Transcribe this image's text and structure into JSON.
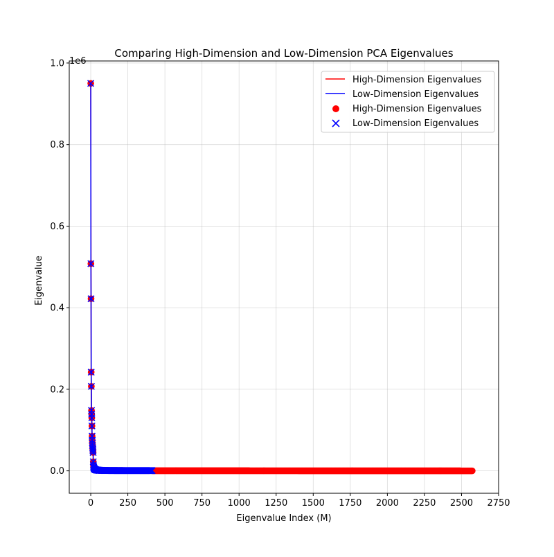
{
  "chart_data": {
    "type": "line",
    "title": "Comparing High-Dimension and Low-Dimension PCA Eigenvalues",
    "xlabel": "Eigenvalue Index (M)",
    "ylabel": "Eigenvalue",
    "y_offset_label": "1e6",
    "xlim": [
      -145,
      2750
    ],
    "ylim": [
      -0.055,
      1.005
    ],
    "y_scale": 1000000,
    "x_ticks": [
      0,
      250,
      500,
      750,
      1000,
      1250,
      1500,
      1750,
      2000,
      2250,
      2500,
      2750
    ],
    "x_tick_labels": [
      "0",
      "250",
      "500",
      "750",
      "1000",
      "1250",
      "1500",
      "1750",
      "2000",
      "2250",
      "2500",
      "2750"
    ],
    "y_ticks": [
      0.0,
      0.2,
      0.4,
      0.6,
      0.8,
      1.0
    ],
    "y_tick_labels": [
      "0.0",
      "0.2",
      "0.4",
      "0.6",
      "0.8",
      "1.0"
    ],
    "grid": true,
    "legend_position": "top-right",
    "legend": [
      {
        "label": "High-Dimension Eigenvalues",
        "marker": "line",
        "color": "#ff0000"
      },
      {
        "label": "Low-Dimension Eigenvalues",
        "marker": "line",
        "color": "#0000ff"
      },
      {
        "label": "High-Dimension Eigenvalues",
        "marker": "circle",
        "color": "#ff0000"
      },
      {
        "label": "Low-Dimension Eigenvalues",
        "marker": "x",
        "color": "#0000ff"
      }
    ],
    "leading_eigenvalues": [
      0.95,
      0.508,
      0.422,
      0.242,
      0.207,
      0.148,
      0.139,
      0.13,
      0.11,
      0.085,
      0.075,
      0.068,
      0.062,
      0.057,
      0.053,
      0.049,
      0.045
    ],
    "series": [
      {
        "name": "High-Dimension Eigenvalues",
        "color": "#ff0000",
        "n_points": 2576,
        "style": "line+circle"
      },
      {
        "name": "Low-Dimension Eigenvalues",
        "color": "#0000ff",
        "n_points": 416,
        "style": "line+x"
      }
    ]
  }
}
